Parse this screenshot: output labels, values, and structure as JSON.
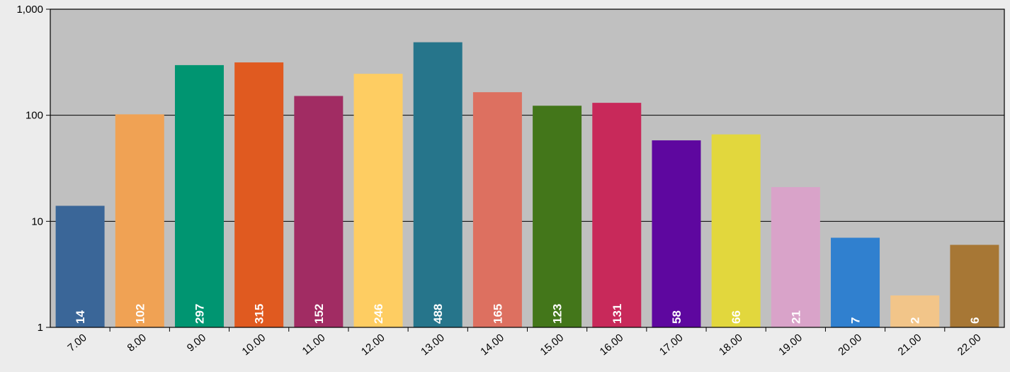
{
  "chart_data": {
    "type": "bar",
    "title": "",
    "xlabel": "",
    "ylabel": "",
    "yscale": "log",
    "ylim": [
      1,
      1000
    ],
    "yticks": [
      1,
      10,
      100,
      1000
    ],
    "ytick_labels": [
      "1",
      "10",
      "100",
      "1,000"
    ],
    "grid": "horizontal",
    "legend": "none",
    "categories": [
      "7.00",
      "8.00",
      "9.00",
      "10.00",
      "11.00",
      "12.00",
      "13.00",
      "14.00",
      "15.00",
      "16.00",
      "17.00",
      "18.00",
      "19.00",
      "20.00",
      "21.00",
      "22.00"
    ],
    "values": [
      14,
      102,
      297,
      315,
      152,
      246,
      488,
      165,
      123,
      131,
      58,
      66,
      21,
      7,
      2,
      6
    ],
    "data_labels": [
      "14",
      "102",
      "297",
      "315",
      "152",
      "246",
      "488",
      "165",
      "123",
      "131",
      "58",
      "66",
      "21",
      "7",
      "2",
      "6"
    ],
    "colors": [
      "#3a6698",
      "#f0a254",
      "#009571",
      "#e05a20",
      "#a12c63",
      "#fecd62",
      "#26758b",
      "#dd7060",
      "#43761a",
      "#c8295a",
      "#5e079f",
      "#e2d73d",
      "#d9a3c9",
      "#3080cf",
      "#f2c589",
      "#a77735"
    ],
    "plot_background": "#c0c0c0",
    "page_background": "#ececec"
  }
}
